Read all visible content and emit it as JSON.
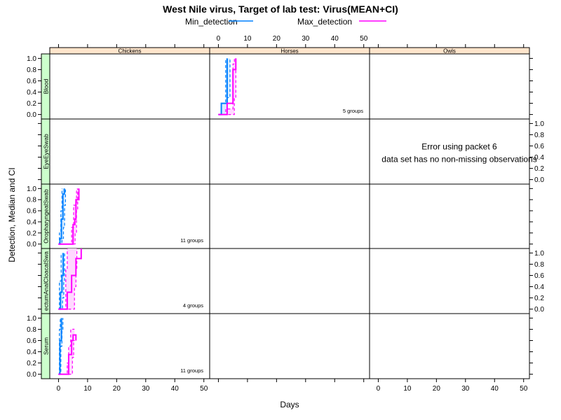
{
  "chart_data": {
    "type": "line",
    "title": "West Nile virus, Target of lab test: Virus(MEAN+CI)",
    "xlabel": "Days",
    "ylabel": "Detection, Median and CI",
    "xlim": [
      -3,
      52
    ],
    "ylim": [
      -0.08,
      1.08
    ],
    "x_ticks": [
      0,
      10,
      20,
      30,
      40,
      50
    ],
    "x_tick_labels": [
      "0",
      "10",
      "20",
      "30",
      "40",
      "50"
    ],
    "y_ticks": [
      0,
      0.2,
      0.4,
      0.6,
      0.8,
      1.0
    ],
    "y_tick_labels": [
      "0.0",
      "0.2",
      "0.4",
      "0.6",
      "0.8",
      "1.0"
    ],
    "legend": {
      "position": "top",
      "entries": [
        {
          "label": "Min_detection",
          "color": "#0080ff"
        },
        {
          "label": "Max_detection",
          "color": "#ff00ff"
        }
      ]
    },
    "columns": [
      "Chickens",
      "Horses",
      "Owls"
    ],
    "rows": [
      "Blood",
      "EyeSwab",
      "OropharyngealSwab",
      "RectumAnalCloacalSwab",
      "Serum"
    ],
    "row_strip_labels": [
      "Blood",
      "EyeEyeSwab",
      "OropharyngealSwab",
      "ectumAnalCloacalSwa",
      "Serum"
    ],
    "colors": {
      "strip_top": "#ffe5cc",
      "strip_side": "#ccffcc",
      "band_min": "#d8ecff",
      "band_max": "#ffd8ff"
    },
    "error_panel": {
      "row": 1,
      "col": 2,
      "lines": [
        "Error using packet 6",
        "data set has no non-missing observations"
      ]
    },
    "panels": [
      {
        "row": 0,
        "col": 1,
        "group_label": "5 groups",
        "series": [
          {
            "name": "Min_detection",
            "median": [
              [
                0,
                0
              ],
              [
                1,
                0
              ],
              [
                1,
                0.2
              ],
              [
                3,
                0.2
              ],
              [
                3,
                1
              ]
            ],
            "upper": [
              [
                0,
                0
              ],
              [
                1,
                0
              ],
              [
                1,
                0.2
              ],
              [
                2.5,
                0.2
              ],
              [
                2.5,
                1
              ]
            ],
            "lower": [
              [
                0,
                0
              ],
              [
                3,
                0
              ],
              [
                3,
                0.3
              ],
              [
                4,
                0.3
              ],
              [
                4,
                1
              ]
            ]
          },
          {
            "name": "Max_detection",
            "median": [
              [
                0,
                0
              ],
              [
                3,
                0
              ],
              [
                3,
                0.2
              ],
              [
                5,
                0.2
              ],
              [
                5,
                0.8
              ],
              [
                6,
                0.8
              ],
              [
                6,
                1
              ]
            ],
            "upper": [
              [
                0,
                0
              ],
              [
                2.5,
                0
              ],
              [
                2.5,
                0.1
              ],
              [
                5,
                0.1
              ],
              [
                5,
                0.9
              ],
              [
                5.5,
                0.9
              ],
              [
                5.5,
                1
              ]
            ],
            "lower": [
              [
                0,
                0
              ],
              [
                5.5,
                0
              ],
              [
                5.5,
                0.3
              ],
              [
                6,
                0.3
              ],
              [
                6,
                1
              ]
            ]
          }
        ]
      },
      {
        "row": 2,
        "col": 0,
        "group_label": "11 groups",
        "series": [
          {
            "name": "Min_detection",
            "median": [
              [
                0,
                0
              ],
              [
                0.5,
                0
              ],
              [
                0.5,
                0.1
              ],
              [
                1,
                0.1
              ],
              [
                1,
                0.45
              ],
              [
                1.5,
                0.45
              ],
              [
                1.5,
                0.9
              ],
              [
                2,
                0.9
              ],
              [
                2,
                1
              ]
            ],
            "upper": [
              [
                0,
                0
              ],
              [
                0.3,
                0
              ],
              [
                0.3,
                0.2
              ],
              [
                0.8,
                0.2
              ],
              [
                0.8,
                0.6
              ],
              [
                1.2,
                0.6
              ],
              [
                1.2,
                1
              ]
            ],
            "lower": [
              [
                0,
                0
              ],
              [
                1.2,
                0
              ],
              [
                1.2,
                0.1
              ],
              [
                1.7,
                0.1
              ],
              [
                1.7,
                0.3
              ],
              [
                2.1,
                0.3
              ],
              [
                2.1,
                0.7
              ],
              [
                2.4,
                0.7
              ],
              [
                2.4,
                1
              ]
            ]
          },
          {
            "name": "Max_detection",
            "median": [
              [
                0,
                0
              ],
              [
                5,
                0
              ],
              [
                5,
                0.35
              ],
              [
                5.6,
                0.35
              ],
              [
                5.6,
                0.45
              ],
              [
                6,
                0.45
              ],
              [
                6,
                0.8
              ],
              [
                7,
                0.8
              ],
              [
                7,
                1
              ]
            ],
            "upper": [
              [
                0,
                0
              ],
              [
                4.5,
                0
              ],
              [
                4.5,
                0.3
              ],
              [
                5.2,
                0.3
              ],
              [
                5.2,
                0.7
              ],
              [
                6.2,
                0.7
              ],
              [
                6.2,
                1
              ]
            ],
            "lower": [
              [
                0,
                0
              ],
              [
                5.7,
                0
              ],
              [
                5.7,
                0.2
              ],
              [
                6.2,
                0.2
              ],
              [
                6.2,
                0.6
              ],
              [
                6.6,
                0.6
              ],
              [
                6.6,
                1
              ]
            ]
          }
        ]
      },
      {
        "row": 3,
        "col": 0,
        "group_label": "4 groups",
        "series": [
          {
            "name": "Min_detection",
            "median": [
              [
                0,
                0
              ],
              [
                0.7,
                0
              ],
              [
                0.7,
                0.3
              ],
              [
                1.2,
                0.3
              ],
              [
                1.2,
                0.6
              ],
              [
                1.6,
                0.6
              ],
              [
                1.6,
                1
              ]
            ],
            "upper": [
              [
                0,
                0
              ],
              [
                0.3,
                0
              ],
              [
                0.3,
                0.5
              ],
              [
                0.9,
                0.5
              ],
              [
                0.9,
                1
              ]
            ],
            "lower": [
              [
                0,
                0
              ],
              [
                1.4,
                0
              ],
              [
                1.4,
                0.2
              ],
              [
                1.8,
                0.2
              ],
              [
                1.8,
                0.5
              ],
              [
                2.1,
                0.5
              ],
              [
                2.1,
                1
              ]
            ]
          },
          {
            "name": "Max_detection",
            "median": [
              [
                0,
                0
              ],
              [
                3,
                0
              ],
              [
                3,
                0.3
              ],
              [
                4.5,
                0.3
              ],
              [
                4.5,
                0.6
              ],
              [
                6,
                0.6
              ],
              [
                6,
                0.9
              ],
              [
                7.8,
                0.9
              ],
              [
                7.8,
                1.08
              ]
            ],
            "upper": [
              [
                0,
                0
              ],
              [
                2.5,
                0
              ],
              [
                2.5,
                0.7
              ],
              [
                3,
                0.7
              ],
              [
                3,
                1.08
              ]
            ],
            "lower": [
              [
                0,
                0
              ],
              [
                5.5,
                0
              ],
              [
                5.5,
                0.4
              ],
              [
                6,
                0.4
              ],
              [
                6,
                0.7
              ],
              [
                6.3,
                0.7
              ],
              [
                6.3,
                1.08
              ]
            ]
          }
        ]
      },
      {
        "row": 4,
        "col": 0,
        "group_label": "11 groups",
        "series": [
          {
            "name": "Min_detection",
            "median": [
              [
                0,
                0
              ],
              [
                0.5,
                0
              ],
              [
                0.5,
                0.6
              ],
              [
                1,
                0.6
              ],
              [
                1,
                1
              ]
            ],
            "upper": [
              [
                0,
                0
              ],
              [
                0.3,
                0
              ],
              [
                0.3,
                0.8
              ],
              [
                0.6,
                0.8
              ],
              [
                0.6,
                1
              ]
            ],
            "lower": [
              [
                0,
                0
              ],
              [
                0.8,
                0
              ],
              [
                0.8,
                0.5
              ],
              [
                1.2,
                0.5
              ],
              [
                1.2,
                0.8
              ],
              [
                1.5,
                0.8
              ],
              [
                1.5,
                1
              ]
            ]
          },
          {
            "name": "Max_detection",
            "median": [
              [
                0,
                0
              ],
              [
                3.5,
                0
              ],
              [
                3.5,
                0.35
              ],
              [
                4.5,
                0.35
              ],
              [
                4.5,
                0.6
              ],
              [
                5,
                0.6
              ],
              [
                5,
                0.7
              ],
              [
                6,
                0.7
              ],
              [
                6,
                0.6
              ]
            ],
            "upper": [
              [
                0,
                0
              ],
              [
                3,
                0
              ],
              [
                3,
                0.2
              ],
              [
                3.5,
                0.2
              ],
              [
                3.5,
                0.5
              ],
              [
                4.2,
                0.5
              ],
              [
                4.2,
                0.8
              ],
              [
                5.5,
                0.8
              ]
            ],
            "lower": [
              [
                0,
                0
              ],
              [
                4.8,
                0
              ],
              [
                4.8,
                0.3
              ],
              [
                5.2,
                0.3
              ],
              [
                5.2,
                0.6
              ],
              [
                5.6,
                0.6
              ]
            ]
          }
        ]
      }
    ]
  }
}
